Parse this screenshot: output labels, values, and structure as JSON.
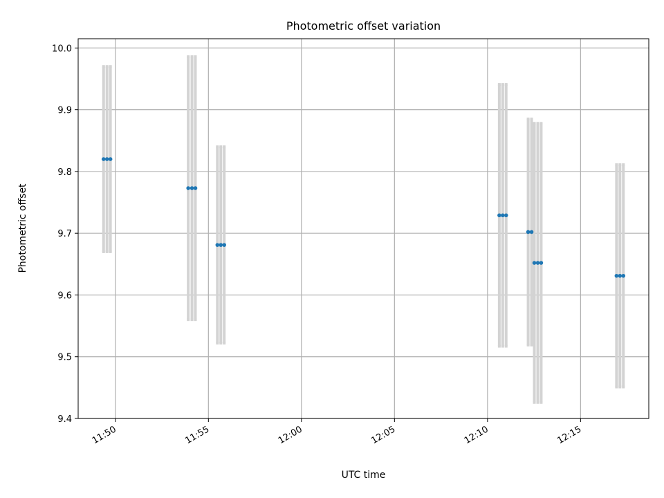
{
  "chart_data": {
    "type": "scatter",
    "title": "Photometric offset variation",
    "xlabel": "UTC time",
    "ylabel": "Photometric offset",
    "x_unit": "minutes",
    "xlim": [
      "11:48",
      "12:18:40"
    ],
    "ylim": [
      9.4,
      10.015
    ],
    "x_ticks": [
      "11:50",
      "11:55",
      "12:00",
      "12:05",
      "12:10",
      "12:15"
    ],
    "y_ticks": [
      "9.4",
      "9.5",
      "9.6",
      "9.7",
      "9.8",
      "9.9",
      "10.0"
    ],
    "grid": true,
    "colors": {
      "point": "#1f77b4",
      "errorbar": "#d3d3d3"
    },
    "series": [
      {
        "points": [
          {
            "x": "11:49:22",
            "y": 9.82,
            "yerr": 0.15
          },
          {
            "x": "11:49:33",
            "y": 9.82,
            "yerr": 0.15
          },
          {
            "x": "11:49:44",
            "y": 9.82,
            "yerr": 0.15
          },
          {
            "x": "11:53:55",
            "y": 9.773,
            "yerr": 0.213
          },
          {
            "x": "11:54:07",
            "y": 9.773,
            "yerr": 0.213
          },
          {
            "x": "11:54:18",
            "y": 9.773,
            "yerr": 0.213
          },
          {
            "x": "11:55:29",
            "y": 9.681,
            "yerr": 0.159
          },
          {
            "x": "11:55:40",
            "y": 9.681,
            "yerr": 0.159
          },
          {
            "x": "11:55:51",
            "y": 9.681,
            "yerr": 0.159
          },
          {
            "x": "12:10:38",
            "y": 9.729,
            "yerr": 0.212
          },
          {
            "x": "12:10:49",
            "y": 9.729,
            "yerr": 0.212
          },
          {
            "x": "12:11:00",
            "y": 9.729,
            "yerr": 0.212
          },
          {
            "x": "12:12:11",
            "y": 9.702,
            "yerr": 0.183
          },
          {
            "x": "12:12:22",
            "y": 9.702,
            "yerr": 0.183
          },
          {
            "x": "12:12:31",
            "y": 9.652,
            "yerr": 0.226
          },
          {
            "x": "12:12:42",
            "y": 9.652,
            "yerr": 0.226
          },
          {
            "x": "12:12:53",
            "y": 9.652,
            "yerr": 0.226
          },
          {
            "x": "12:16:56",
            "y": 9.631,
            "yerr": 0.18
          },
          {
            "x": "12:17:07",
            "y": 9.631,
            "yerr": 0.18
          },
          {
            "x": "12:17:18",
            "y": 9.631,
            "yerr": 0.18
          }
        ]
      }
    ]
  }
}
